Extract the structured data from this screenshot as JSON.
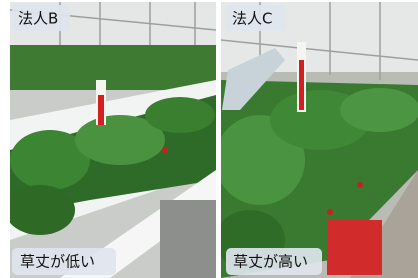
{
  "panels": [
    {
      "label": "法人B",
      "caption": "草丈が低い"
    },
    {
      "label": "法人C",
      "caption": "草丈が高い"
    }
  ]
}
